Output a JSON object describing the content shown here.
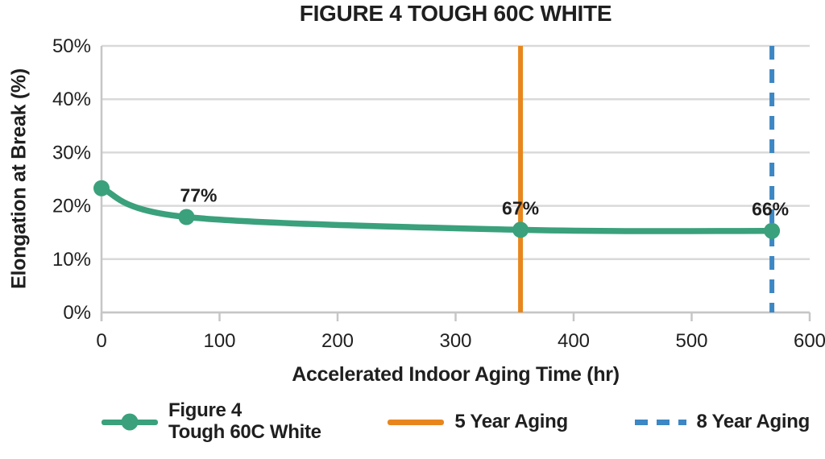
{
  "figure": {
    "title": "FIGURE 4 TOUGH 60C WHITE"
  },
  "chart_data": {
    "type": "line",
    "title": "FIGURE 4 TOUGH 60C WHITE",
    "xlabel": "Accelerated Indoor Aging Time (hr)",
    "ylabel": "Elongation at Break (%)",
    "xlim": [
      0,
      600
    ],
    "ylim": [
      0,
      50
    ],
    "xticks": [
      0,
      100,
      200,
      300,
      400,
      500,
      600
    ],
    "ytick_labels": [
      "0%",
      "10%",
      "20%",
      "30%",
      "40%",
      "50%"
    ],
    "grid": "horizontal-gridlines-only",
    "legend_position": "bottom",
    "colors": {
      "series_green": "#3AA17C",
      "five_year_orange": "#E8861E",
      "eight_year_blue": "#3C87C4",
      "gridline": "#D9D9D9",
      "axis": "#C6C6C6",
      "text": "#1F1F1F"
    },
    "series": [
      {
        "name": "Figure 4 Tough 60C White",
        "color": "#3AA17C",
        "points": [
          {
            "x": 0,
            "y": 23.3,
            "label": ""
          },
          {
            "x": 72,
            "y": 17.9,
            "label": "77%",
            "label_dx": 15
          },
          {
            "x": 355,
            "y": 15.5,
            "label": "67%",
            "label_dx": 0
          },
          {
            "x": 568,
            "y": 15.3,
            "label": "66%",
            "label_dx": -2
          }
        ]
      }
    ],
    "vlines": [
      {
        "name": "5 Year Aging",
        "x": 355,
        "color": "#E8861E",
        "style": "solid"
      },
      {
        "name": "8 Year Aging",
        "x": 568,
        "color": "#3C87C4",
        "style": "dashed"
      }
    ],
    "legend": [
      {
        "lines": [
          "Figure 4",
          "Tough 60C White"
        ],
        "color": "#3AA17C",
        "style": "line-with-dot"
      },
      {
        "lines": [
          "5 Year Aging"
        ],
        "color": "#E8861E",
        "style": "solid"
      },
      {
        "lines": [
          "8 Year Aging"
        ],
        "color": "#3C87C4",
        "style": "dashed"
      }
    ]
  }
}
